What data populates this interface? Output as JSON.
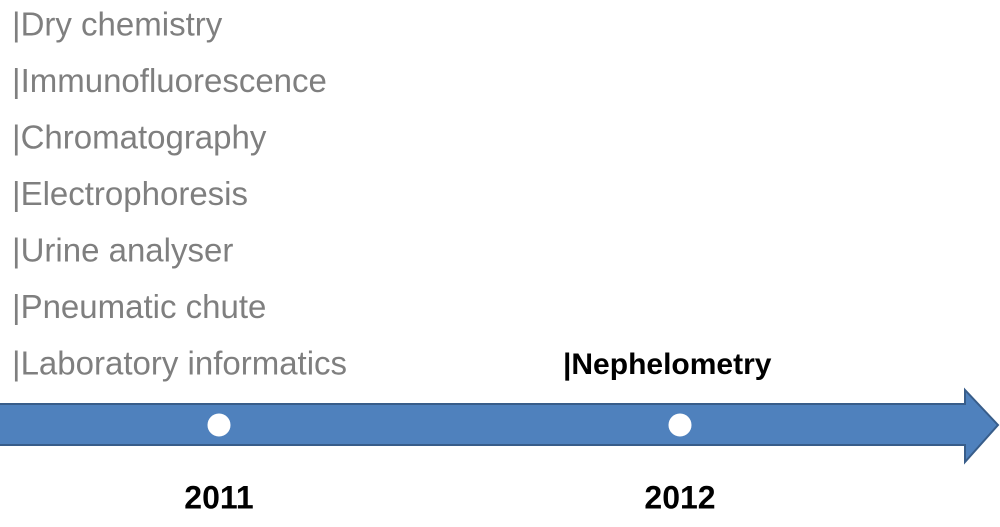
{
  "timeline": {
    "events": [
      {
        "year": "2011",
        "items": [
          "|Dry chemistry",
          "|Immunofluorescence",
          "|Chromatography",
          "|Electrophoresis",
          "|Urine analyser",
          "|Pneumatic chute",
          "|Laboratory informatics"
        ]
      },
      {
        "year": "2012",
        "items": [
          "|Nephelometry"
        ]
      }
    ]
  }
}
